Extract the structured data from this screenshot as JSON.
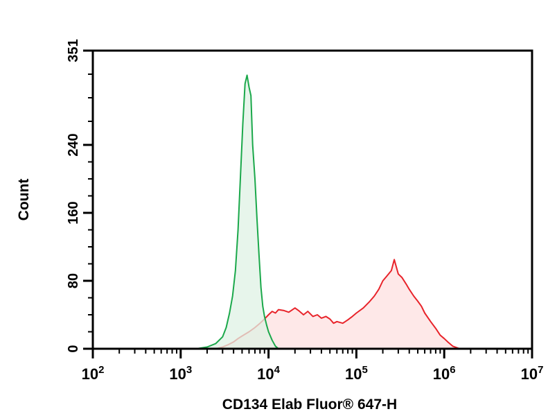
{
  "chart_data": {
    "type": "area",
    "xlabel": "CD134 Elab Fluor® 647-H",
    "ylabel": "Count",
    "x_scale": "log",
    "xlim": [
      100,
      10000000
    ],
    "ylim": [
      0,
      351
    ],
    "x_ticks": [
      {
        "base": "10",
        "exp": "2",
        "value": 100
      },
      {
        "base": "10",
        "exp": "3",
        "value": 1000
      },
      {
        "base": "10",
        "exp": "4",
        "value": 10000
      },
      {
        "base": "10",
        "exp": "5",
        "value": 100000
      },
      {
        "base": "10",
        "exp": "6",
        "value": 1000000
      },
      {
        "base": "10",
        "exp": "7",
        "value": 10000000
      }
    ],
    "y_ticks": [
      {
        "label": "0",
        "value": 0
      },
      {
        "label": "80",
        "value": 80
      },
      {
        "label": "160",
        "value": 160
      },
      {
        "label": "240",
        "value": 240
      },
      {
        "label": "351",
        "value": 351
      }
    ],
    "grid": false,
    "series": [
      {
        "color": "#e8232a",
        "fill": "#fde0e0",
        "x": [
          2500,
          3000,
          3500,
          4000,
          4500,
          5000,
          6000,
          7000,
          8000,
          9000,
          10000,
          11000,
          12000,
          13000,
          15000,
          17000,
          20000,
          22000,
          25000,
          28000,
          32000,
          36000,
          40000,
          45000,
          50000,
          55000,
          60000,
          70000,
          80000,
          90000,
          100000,
          120000,
          140000,
          160000,
          180000,
          200000,
          220000,
          250000,
          270000,
          300000,
          330000,
          370000,
          400000,
          450000,
          500000,
          550000,
          600000,
          700000,
          800000,
          900000,
          1000000,
          1100000,
          1250000,
          1500000
        ],
        "y": [
          0,
          2,
          5,
          8,
          12,
          15,
          20,
          25,
          30,
          35,
          40,
          44,
          42,
          46,
          45,
          43,
          48,
          45,
          40,
          44,
          38,
          40,
          36,
          38,
          35,
          30,
          32,
          30,
          34,
          38,
          42,
          48,
          55,
          62,
          70,
          80,
          85,
          92,
          105,
          88,
          84,
          76,
          70,
          62,
          56,
          50,
          42,
          32,
          24,
          16,
          12,
          8,
          3,
          0
        ]
      },
      {
        "color": "#1aa84a",
        "fill": "#dff2e4",
        "x": [
          1000,
          1500,
          2000,
          2500,
          3000,
          3300,
          3600,
          3900,
          4200,
          4500,
          4800,
          5100,
          5400,
          5700,
          6000,
          6300,
          6600,
          7000,
          7400,
          7800,
          8200,
          8600,
          9000,
          9500,
          10000,
          11000,
          12000,
          13000
        ],
        "y": [
          0,
          0,
          2,
          6,
          14,
          25,
          42,
          62,
          92,
          140,
          205,
          265,
          312,
          322,
          308,
          298,
          240,
          200,
          152,
          110,
          72,
          50,
          38,
          28,
          20,
          10,
          3,
          0
        ]
      }
    ]
  }
}
